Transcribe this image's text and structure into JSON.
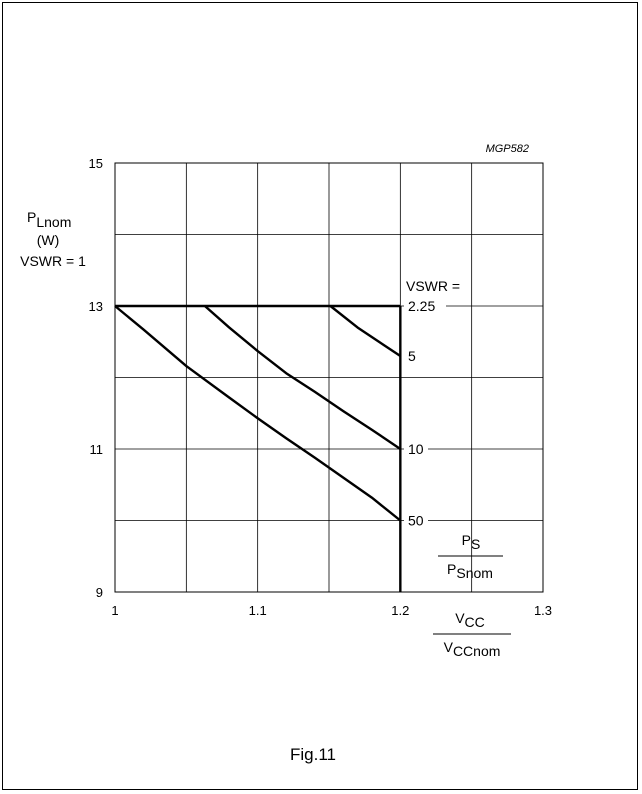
{
  "chart_data": {
    "type": "line",
    "code": "MGP582",
    "ylabel_main": "P",
    "ylabel_sub": "Lnom",
    "ylabel_unit": "(W)",
    "ylabel_cond": "VSWR = 1",
    "xlabel_num_main": "V",
    "xlabel_num_sub": "CC",
    "xlabel_den_main": "V",
    "xlabel_den_sub": "CCnom",
    "ps_num_main": "P",
    "ps_num_sub": "S",
    "ps_den_main": "P",
    "ps_den_sub": "Snom",
    "xlim": [
      1,
      1.3
    ],
    "ylim": [
      9,
      15
    ],
    "x_ticks": [
      {
        "value": 1,
        "label": "1"
      },
      {
        "value": 1.1,
        "label": "1.1"
      },
      {
        "value": 1.2,
        "label": "1.2"
      },
      {
        "value": 1.3,
        "label": "1.3"
      }
    ],
    "y_ticks": [
      {
        "value": 9,
        "label": "9"
      },
      {
        "value": 11,
        "label": "11"
      },
      {
        "value": 13,
        "label": "13"
      },
      {
        "value": 15,
        "label": "15"
      }
    ],
    "x_grid": [
      1.05,
      1.1,
      1.15,
      1.2,
      1.25
    ],
    "y_grid": [
      10,
      11,
      12,
      13,
      14
    ],
    "vswr_title": "VSWR =",
    "vswr_labels": [
      {
        "label": "2.25",
        "y": 13
      },
      {
        "label": "5",
        "y": 12.3
      },
      {
        "label": "10",
        "y": 11
      },
      {
        "label": "50",
        "y": 10
      }
    ],
    "series": [
      {
        "points": [
          [
            1,
            13
          ],
          [
            1.2,
            13
          ]
        ]
      },
      {
        "points": [
          [
            1.2,
            9
          ],
          [
            1.2,
            13
          ]
        ]
      },
      {
        "points": [
          [
            1.151,
            13
          ],
          [
            1.17,
            12.7
          ],
          [
            1.2,
            12.3
          ]
        ]
      },
      {
        "points": [
          [
            1.063,
            13
          ],
          [
            1.08,
            12.7
          ],
          [
            1.1,
            12.37
          ],
          [
            1.12,
            12.06
          ],
          [
            1.14,
            11.8
          ],
          [
            1.16,
            11.53
          ],
          [
            1.18,
            11.27
          ],
          [
            1.2,
            11
          ]
        ]
      },
      {
        "points": [
          [
            1,
            13
          ],
          [
            1.02,
            12.67
          ],
          [
            1.05,
            12.16
          ],
          [
            1.08,
            11.72
          ],
          [
            1.1,
            11.43
          ],
          [
            1.12,
            11.15
          ],
          [
            1.14,
            10.88
          ],
          [
            1.16,
            10.6
          ],
          [
            1.18,
            10.32
          ],
          [
            1.2,
            10
          ]
        ]
      }
    ]
  },
  "caption": "Fig.11"
}
